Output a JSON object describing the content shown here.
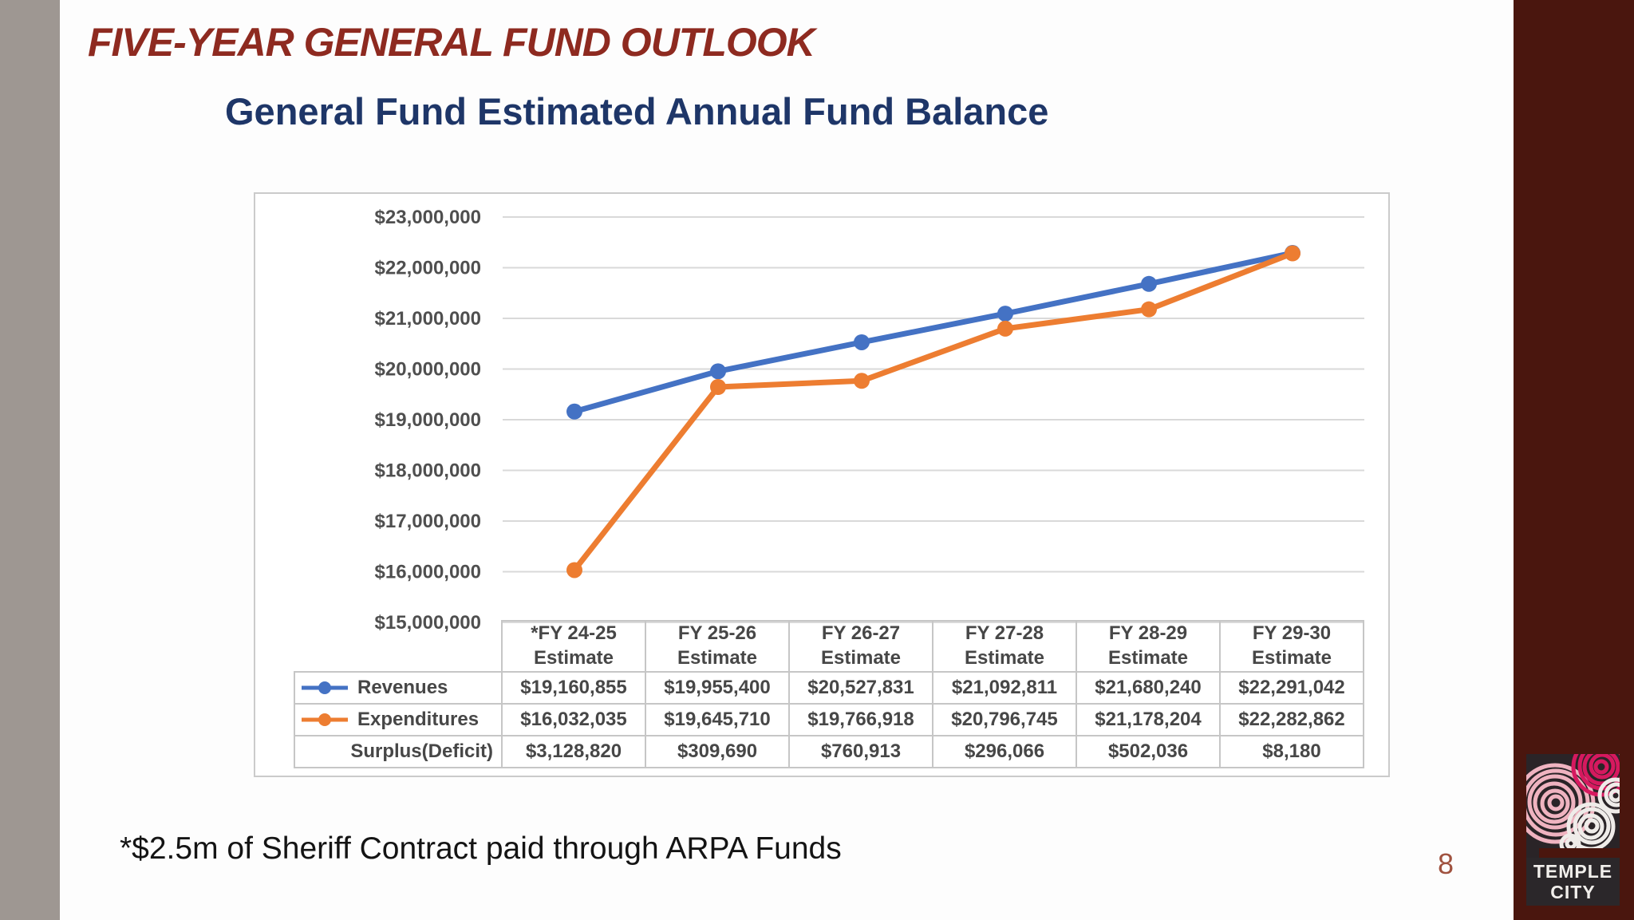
{
  "slide": {
    "title": "FIVE-YEAR GENERAL FUND OUTLOOK",
    "footnote": "*$2.5m of Sheriff Contract paid through ARPA Funds",
    "page_number": "8"
  },
  "logo": {
    "line1": "TEMPLE",
    "line2": "CITY"
  },
  "colors": {
    "title_red": "#8E2A20",
    "chart_title_navy": "#1E3668",
    "revenues_blue": "#4472C4",
    "expenditures_orange": "#ED7D31",
    "gridline_gray": "#D9D9D9",
    "table_border_gray": "#C6C6C6",
    "right_bar_maroon": "#4A160E",
    "left_bar_gray": "#9E9792"
  },
  "chart_data": {
    "type": "line",
    "title": "General Fund Estimated Annual Fund Balance",
    "xlabel": "",
    "ylabel": "",
    "ylim": [
      15000000,
      23000000
    ],
    "ytick_step": 1000000,
    "ytick_labels": [
      "$15,000,000",
      "$16,000,000",
      "$17,000,000",
      "$18,000,000",
      "$19,000,000",
      "$20,000,000",
      "$21,000,000",
      "$22,000,000",
      "$23,000,000"
    ],
    "grid": true,
    "legend_position": "table-left-column",
    "categories": [
      [
        "*FY 24-25",
        "Estimate"
      ],
      [
        "FY 25-26",
        "Estimate"
      ],
      [
        "FY 26-27",
        "Estimate"
      ],
      [
        "FY 27-28",
        "Estimate"
      ],
      [
        "FY 28-29",
        "Estimate"
      ],
      [
        "FY 29-30",
        "Estimate"
      ]
    ],
    "series": [
      {
        "name": "Revenues",
        "color": "#4472C4",
        "marker": "circle",
        "values": [
          19160855,
          19955400,
          20527831,
          21092811,
          21680240,
          22291042
        ],
        "display": [
          "$19,160,855",
          "$19,955,400",
          "$20,527,831",
          "$21,092,811",
          "$21,680,240",
          "$22,291,042"
        ]
      },
      {
        "name": "Expenditures",
        "color": "#ED7D31",
        "marker": "circle",
        "values": [
          16032035,
          19645710,
          19766918,
          20796745,
          21178204,
          22282862
        ],
        "display": [
          "$16,032,035",
          "$19,645,710",
          "$19,766,918",
          "$20,796,745",
          "$21,178,204",
          "$22,282,862"
        ]
      }
    ],
    "derived_row": {
      "name": "Surplus(Deficit)",
      "display": [
        "$3,128,820",
        "$309,690",
        "$760,913",
        "$296,066",
        "$502,036",
        "$8,180"
      ]
    }
  }
}
